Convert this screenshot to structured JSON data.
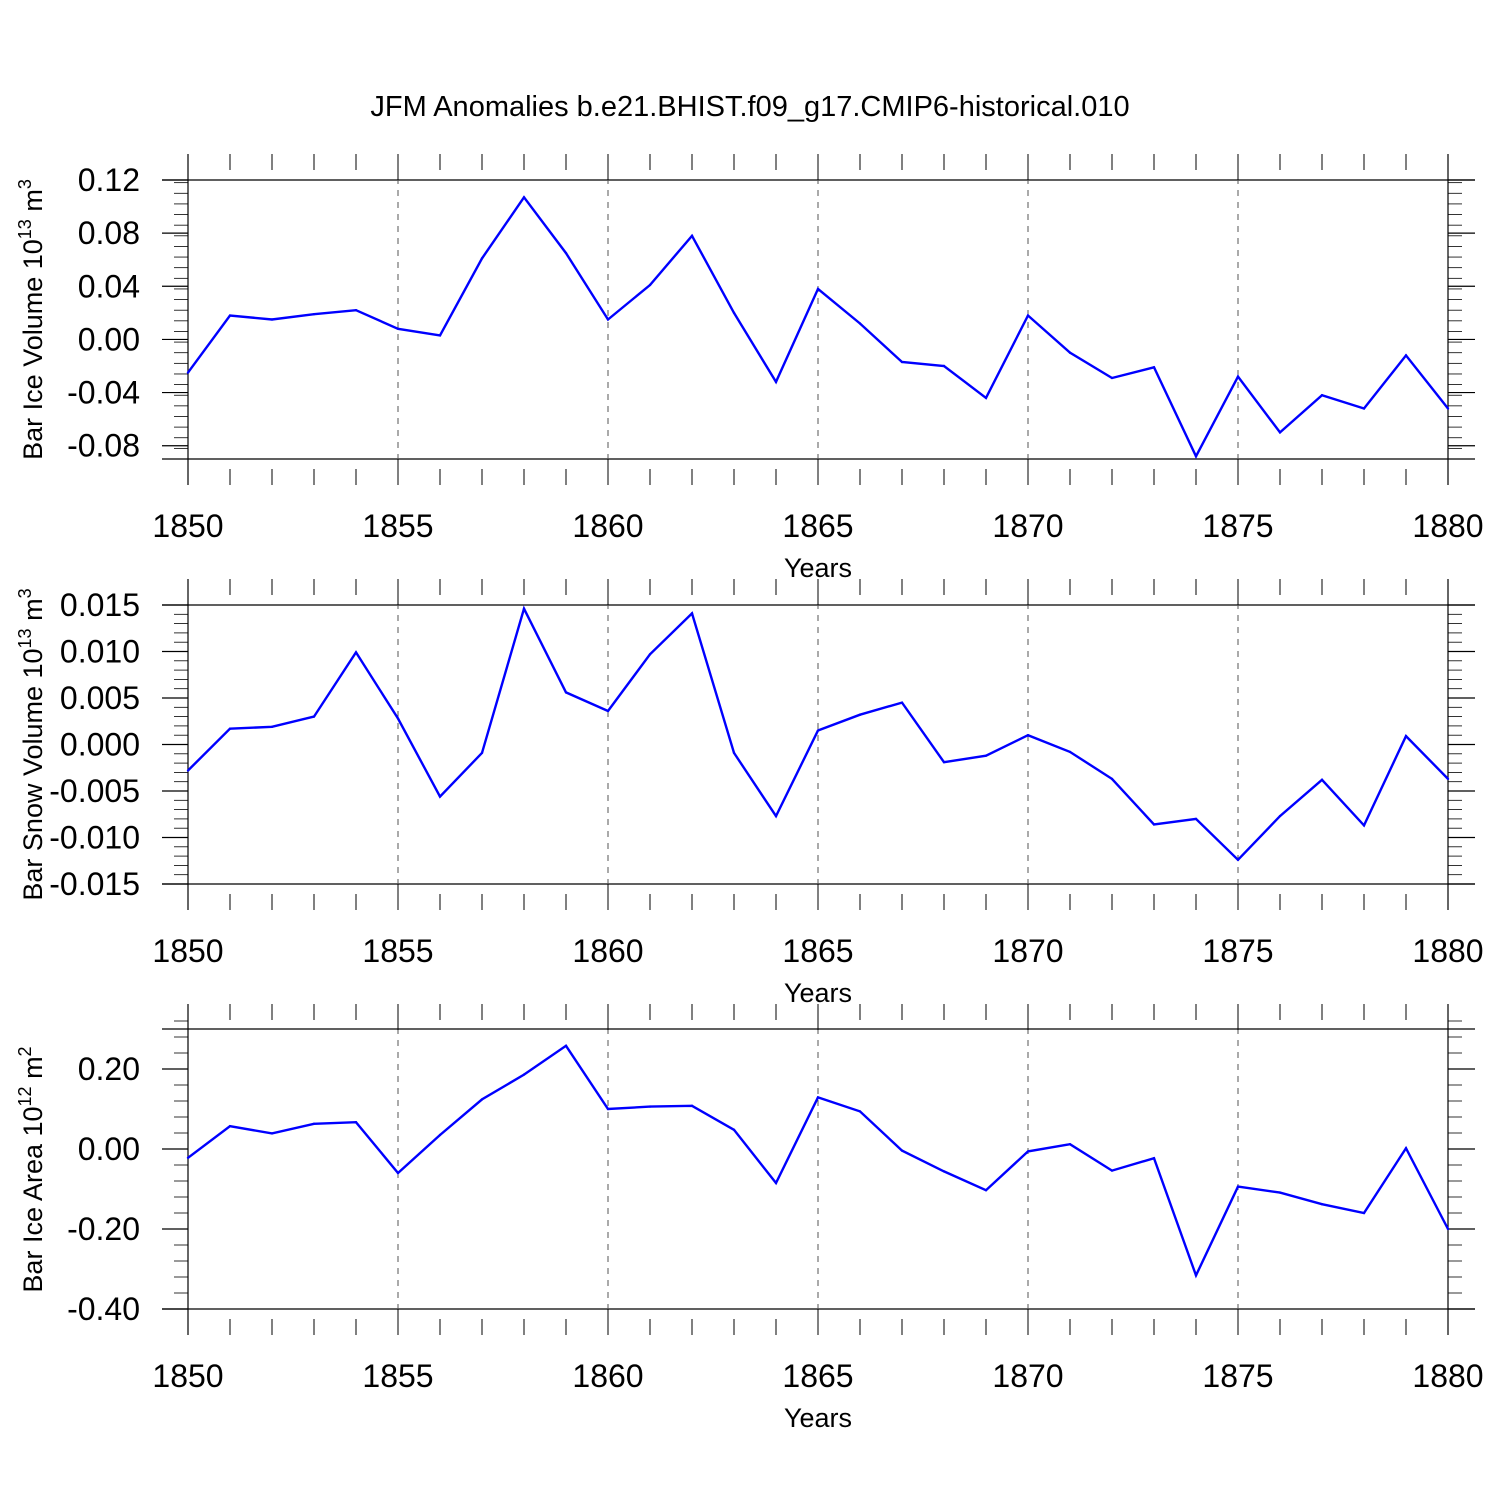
{
  "title": "JFM Anomalies b.e21.BHIST.f09_g17.CMIP6-historical.010",
  "colors": {
    "line": "#0000ff",
    "axis": "#000000",
    "grid": "#555555"
  },
  "chart_data": [
    {
      "type": "line",
      "ylabel_text": "Bar Ice Volume 10",
      "ylabel_exp": "13",
      "ylabel_unit": " m",
      "ylabel_unit_exp": "3",
      "xlabel": "Years",
      "xlim": [
        1850,
        1880
      ],
      "ylim": [
        -0.09,
        0.12
      ],
      "x_ticks": [
        "1850",
        "1855",
        "1860",
        "1865",
        "1870",
        "1875",
        "1880"
      ],
      "y_ticks": [
        {
          "v": 0.12,
          "label": "0.12"
        },
        {
          "v": 0.08,
          "label": "0.08"
        },
        {
          "v": 0.04,
          "label": "0.04"
        },
        {
          "v": 0.0,
          "label": "0.00"
        },
        {
          "v": -0.04,
          "label": "-0.04"
        },
        {
          "v": -0.08,
          "label": "-0.08"
        }
      ],
      "y_minor_step": 0.008,
      "series": [
        {
          "name": "Bar Ice Volume",
          "x": [
            1850,
            1851,
            1852,
            1853,
            1854,
            1855,
            1856,
            1857,
            1858,
            1859,
            1860,
            1861,
            1862,
            1863,
            1864,
            1865,
            1866,
            1867,
            1868,
            1869,
            1870,
            1871,
            1872,
            1873,
            1874,
            1875,
            1876,
            1877,
            1878,
            1879,
            1880
          ],
          "values": [
            -0.025,
            0.018,
            0.015,
            0.019,
            0.022,
            0.008,
            0.003,
            0.061,
            0.107,
            0.065,
            0.015,
            0.041,
            0.078,
            0.02,
            -0.032,
            0.038,
            0.012,
            -0.017,
            -0.02,
            -0.044,
            0.018,
            -0.01,
            -0.029,
            -0.021,
            -0.088,
            -0.028,
            -0.07,
            -0.042,
            -0.052,
            -0.012,
            -0.052
          ]
        }
      ]
    },
    {
      "type": "line",
      "ylabel_text": "Bar Snow Volume 10",
      "ylabel_exp": "13",
      "ylabel_unit": " m",
      "ylabel_unit_exp": "3",
      "xlabel": "Years",
      "xlim": [
        1850,
        1880
      ],
      "ylim": [
        -0.015,
        0.015
      ],
      "x_ticks": [
        "1850",
        "1855",
        "1860",
        "1865",
        "1870",
        "1875",
        "1880"
      ],
      "y_ticks": [
        {
          "v": 0.015,
          "label": "0.015"
        },
        {
          "v": 0.01,
          "label": "0.010"
        },
        {
          "v": 0.005,
          "label": "0.005"
        },
        {
          "v": 0.0,
          "label": "0.000"
        },
        {
          "v": -0.005,
          "label": "-0.005"
        },
        {
          "v": -0.01,
          "label": "-0.010"
        },
        {
          "v": -0.015,
          "label": "-0.015"
        }
      ],
      "y_minor_step": 0.001,
      "series": [
        {
          "name": "Bar Snow Volume",
          "x": [
            1850,
            1851,
            1852,
            1853,
            1854,
            1855,
            1856,
            1857,
            1858,
            1859,
            1860,
            1861,
            1862,
            1863,
            1864,
            1865,
            1866,
            1867,
            1868,
            1869,
            1870,
            1871,
            1872,
            1873,
            1874,
            1875,
            1876,
            1877,
            1878,
            1879,
            1880
          ],
          "values": [
            -0.0028,
            0.0017,
            0.0019,
            0.003,
            0.0099,
            0.0028,
            -0.0056,
            -0.0009,
            0.0146,
            0.0056,
            0.0036,
            0.0097,
            0.0141,
            -0.0009,
            -0.0077,
            0.0015,
            0.0032,
            0.0045,
            -0.0019,
            -0.0012,
            0.001,
            -0.0008,
            -0.0037,
            -0.0086,
            -0.008,
            -0.0124,
            -0.0077,
            -0.0038,
            -0.0087,
            0.0009,
            -0.0037
          ]
        }
      ]
    },
    {
      "type": "line",
      "ylabel_text": "Bar Ice Area 10",
      "ylabel_exp": "12",
      "ylabel_unit": " m",
      "ylabel_unit_exp": "2",
      "xlabel": "Years",
      "xlim": [
        1850,
        1880
      ],
      "ylim": [
        -0.4,
        0.3
      ],
      "x_ticks": [
        "1850",
        "1855",
        "1860",
        "1865",
        "1870",
        "1875",
        "1880"
      ],
      "y_ticks": [
        {
          "v": 0.2,
          "label": "0.20"
        },
        {
          "v": 0.0,
          "label": "0.00"
        },
        {
          "v": -0.2,
          "label": "-0.20"
        },
        {
          "v": -0.4,
          "label": "-0.40"
        }
      ],
      "y_minor_step": 0.04,
      "series": [
        {
          "name": "Bar Ice Area",
          "x": [
            1850,
            1851,
            1852,
            1853,
            1854,
            1855,
            1856,
            1857,
            1858,
            1859,
            1860,
            1861,
            1862,
            1863,
            1864,
            1865,
            1866,
            1867,
            1868,
            1869,
            1870,
            1871,
            1872,
            1873,
            1874,
            1875,
            1876,
            1877,
            1878,
            1879,
            1880
          ],
          "values": [
            -0.022,
            0.057,
            0.039,
            0.063,
            0.067,
            -0.06,
            0.035,
            0.124,
            0.186,
            0.258,
            0.1,
            0.106,
            0.108,
            0.048,
            -0.085,
            0.129,
            0.094,
            -0.004,
            -0.056,
            -0.103,
            -0.006,
            0.012,
            -0.054,
            -0.023,
            -0.316,
            -0.094,
            -0.109,
            -0.138,
            -0.16,
            0.002,
            -0.2
          ]
        }
      ]
    }
  ]
}
